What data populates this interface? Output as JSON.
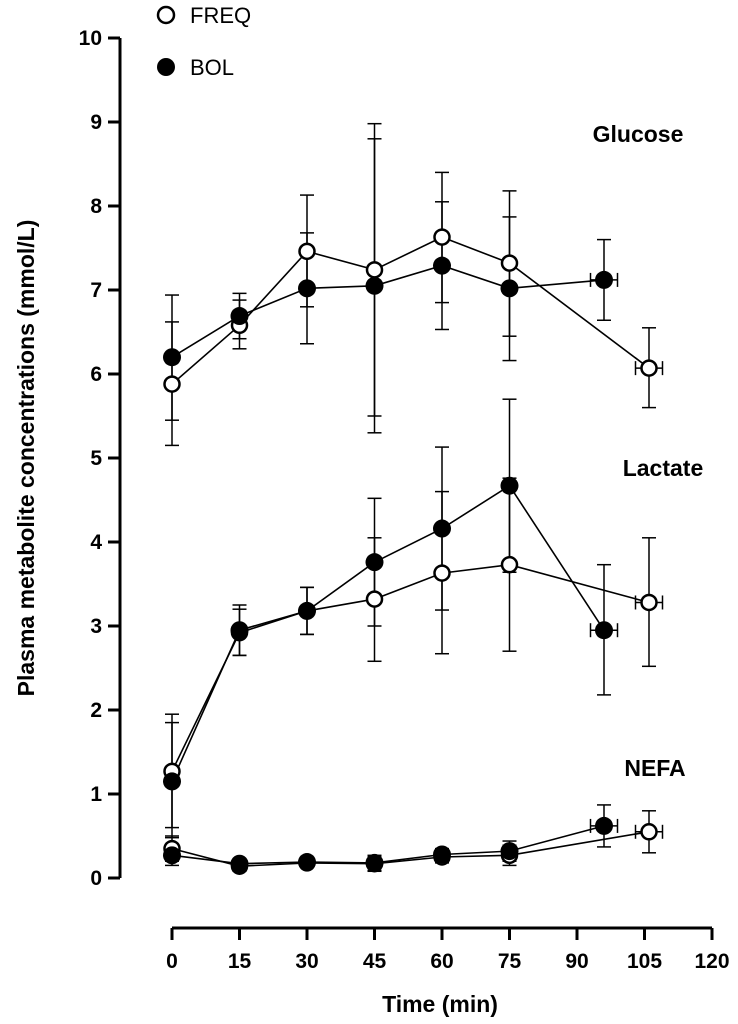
{
  "chart_data": {
    "type": "line",
    "xlabel": "Time (min)",
    "ylabel": "Plasma metabolite concentrations (mmol/L)",
    "xlim": [
      0,
      120
    ],
    "ylim": [
      0,
      10
    ],
    "xticks": [
      0,
      15,
      30,
      45,
      60,
      75,
      90,
      105,
      120
    ],
    "yticks": [
      0,
      1,
      2,
      3,
      4,
      5,
      6,
      7,
      8,
      9,
      10
    ],
    "grid": false,
    "legend": {
      "position": "top-left",
      "entries": [
        {
          "name": "FREQ",
          "marker": "open-circle"
        },
        {
          "name": "BOL",
          "marker": "filled-circle"
        }
      ]
    },
    "annotations": [
      {
        "text": "Glucose",
        "x": 110,
        "y": 8.6
      },
      {
        "text": "Lactate",
        "x": 110,
        "y": 4.9
      },
      {
        "text": "NEFA",
        "x": 110,
        "y": 1.3
      }
    ],
    "series": [
      {
        "name": "FREQ",
        "group": "Glucose",
        "marker": "open",
        "points": [
          {
            "x": 0,
            "y": 5.88,
            "ylo": 5.15,
            "yhi": 6.62
          },
          {
            "x": 15,
            "y": 6.58,
            "ylo": 6.3,
            "yhi": 6.88
          },
          {
            "x": 30,
            "y": 7.46,
            "ylo": 6.8,
            "yhi": 8.13
          },
          {
            "x": 45,
            "y": 7.24,
            "ylo": 5.5,
            "yhi": 8.98
          },
          {
            "x": 60,
            "y": 7.63,
            "ylo": 6.85,
            "yhi": 8.4
          },
          {
            "x": 75,
            "y": 7.32,
            "ylo": 6.45,
            "yhi": 8.18
          },
          {
            "x": 106,
            "y": 6.07,
            "ylo": 5.6,
            "yhi": 6.55,
            "xlo": 103,
            "xhi": 109
          }
        ]
      },
      {
        "name": "BOL",
        "group": "Glucose",
        "marker": "filled",
        "points": [
          {
            "x": 0,
            "y": 6.2,
            "ylo": 5.45,
            "yhi": 6.94
          },
          {
            "x": 15,
            "y": 6.69,
            "ylo": 6.42,
            "yhi": 6.96
          },
          {
            "x": 30,
            "y": 7.02,
            "ylo": 6.36,
            "yhi": 7.68
          },
          {
            "x": 45,
            "y": 7.05,
            "ylo": 5.3,
            "yhi": 8.8
          },
          {
            "x": 60,
            "y": 7.29,
            "ylo": 6.53,
            "yhi": 8.05
          },
          {
            "x": 75,
            "y": 7.02,
            "ylo": 6.16,
            "yhi": 7.87
          },
          {
            "x": 96,
            "y": 7.12,
            "ylo": 6.64,
            "yhi": 7.6,
            "xlo": 93,
            "xhi": 99
          }
        ]
      },
      {
        "name": "FREQ",
        "group": "Lactate",
        "marker": "open",
        "points": [
          {
            "x": 0,
            "y": 1.27,
            "ylo": 0.6,
            "yhi": 1.95
          },
          {
            "x": 15,
            "y": 2.92,
            "ylo": 2.65,
            "yhi": 3.2
          },
          {
            "x": 30,
            "y": 3.18,
            "ylo": 2.9,
            "yhi": 3.46
          },
          {
            "x": 45,
            "y": 3.32,
            "ylo": 2.58,
            "yhi": 4.05
          },
          {
            "x": 60,
            "y": 3.63,
            "ylo": 2.67,
            "yhi": 4.6
          },
          {
            "x": 75,
            "y": 3.73,
            "ylo": 2.7,
            "yhi": 4.76
          },
          {
            "x": 106,
            "y": 3.28,
            "ylo": 2.52,
            "yhi": 4.05,
            "xlo": 103,
            "xhi": 109
          }
        ]
      },
      {
        "name": "BOL",
        "group": "Lactate",
        "marker": "filled",
        "points": [
          {
            "x": 0,
            "y": 1.15,
            "ylo": 0.48,
            "yhi": 1.85
          },
          {
            "x": 15,
            "y": 2.95,
            "ylo": 2.65,
            "yhi": 3.25
          },
          {
            "x": 30,
            "y": 3.18,
            "ylo": 2.9,
            "yhi": 3.46
          },
          {
            "x": 45,
            "y": 3.76,
            "ylo": 3.0,
            "yhi": 4.52
          },
          {
            "x": 60,
            "y": 4.16,
            "ylo": 3.19,
            "yhi": 5.13
          },
          {
            "x": 75,
            "y": 4.67,
            "ylo": 3.64,
            "yhi": 5.7
          },
          {
            "x": 96,
            "y": 2.95,
            "ylo": 2.18,
            "yhi": 3.73,
            "xlo": 93,
            "xhi": 99
          }
        ]
      },
      {
        "name": "FREQ",
        "group": "NEFA",
        "marker": "open",
        "points": [
          {
            "x": 0,
            "y": 0.35,
            "ylo": 0.2,
            "yhi": 0.5
          },
          {
            "x": 15,
            "y": 0.14,
            "ylo": 0.08,
            "yhi": 0.2
          },
          {
            "x": 30,
            "y": 0.18,
            "ylo": 0.13,
            "yhi": 0.23
          },
          {
            "x": 45,
            "y": 0.17,
            "ylo": 0.08,
            "yhi": 0.26
          },
          {
            "x": 60,
            "y": 0.25,
            "ylo": 0.18,
            "yhi": 0.32
          },
          {
            "x": 75,
            "y": 0.27,
            "ylo": 0.15,
            "yhi": 0.39
          },
          {
            "x": 106,
            "y": 0.55,
            "ylo": 0.3,
            "yhi": 0.8,
            "xlo": 103,
            "xhi": 109
          }
        ]
      },
      {
        "name": "BOL",
        "group": "NEFA",
        "marker": "filled",
        "points": [
          {
            "x": 0,
            "y": 0.27,
            "ylo": 0.15,
            "yhi": 0.39
          },
          {
            "x": 15,
            "y": 0.17,
            "ylo": 0.11,
            "yhi": 0.23
          },
          {
            "x": 30,
            "y": 0.19,
            "ylo": 0.14,
            "yhi": 0.24
          },
          {
            "x": 45,
            "y": 0.18,
            "ylo": 0.09,
            "yhi": 0.27
          },
          {
            "x": 60,
            "y": 0.28,
            "ylo": 0.21,
            "yhi": 0.35
          },
          {
            "x": 75,
            "y": 0.32,
            "ylo": 0.2,
            "yhi": 0.44
          },
          {
            "x": 96,
            "y": 0.62,
            "ylo": 0.37,
            "yhi": 0.87,
            "xlo": 93,
            "xhi": 99
          }
        ]
      }
    ]
  }
}
